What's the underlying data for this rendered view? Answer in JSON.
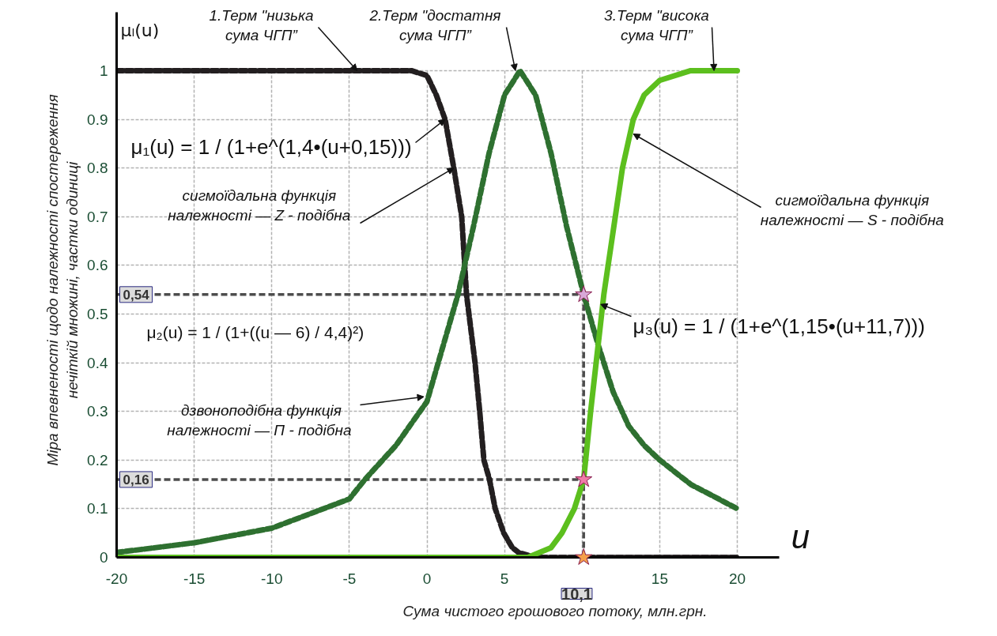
{
  "chart_data": {
    "type": "line",
    "xlabel": "Сума чистого грошового потоку, млн.грн.",
    "ylabel": "Міра впевненості щодо належності спостереження\nнечіткій множині, частки одиниці",
    "xlim": [
      -20,
      22.7
    ],
    "ylim": [
      0,
      1.12
    ],
    "xticks": [
      -20,
      -15,
      -10,
      -5,
      0,
      5,
      {
        "value": 10,
        "label": null
      },
      15,
      20
    ],
    "yticks": [
      0,
      0.1,
      0.2,
      0.3,
      0.4,
      0.5,
      0.6,
      0.7,
      0.8,
      0.9,
      1
    ],
    "grid": true,
    "series": [
      {
        "color": "#231f20",
        "line_style": "dashed",
        "x": [
          -20,
          -10,
          -1,
          0,
          0.6,
          1.17,
          1.73,
          2.24,
          2.55,
          3.1,
          3.4,
          3.67,
          4.03,
          4.4,
          4.95,
          5.5,
          5.9,
          7,
          20
        ],
        "values": [
          1,
          1,
          1,
          0.99,
          0.95,
          0.9,
          0.8,
          0.7,
          0.54,
          0.4,
          0.3,
          0.2,
          0.16,
          0.1,
          0.05,
          0.02,
          0.01,
          0,
          0
        ]
      },
      {
        "color": "#2e7030",
        "line_style": "dashed",
        "x": [
          -20,
          -15,
          -10,
          -5,
          -4,
          -2,
          0,
          1,
          2,
          3,
          4,
          5,
          6,
          7,
          8,
          9,
          10.1,
          11,
          12,
          13,
          14,
          15,
          17,
          20
        ],
        "values": [
          0.01,
          0.03,
          0.06,
          0.12,
          0.16,
          0.23,
          0.32,
          0.43,
          0.54,
          0.68,
          0.83,
          0.95,
          1,
          0.95,
          0.83,
          0.68,
          0.54,
          0.44,
          0.34,
          0.27,
          0.23,
          0.2,
          0.15,
          0.1
        ]
      },
      {
        "color": "#5cbf1e",
        "line_style": "solid",
        "x": [
          -20,
          0,
          6.5,
          8,
          8.7,
          9.5,
          10.1,
          10.55,
          11.4,
          12.6,
          13.3,
          14,
          15,
          17,
          20
        ],
        "values": [
          0,
          0,
          0,
          0.02,
          0.05,
          0.1,
          0.16,
          0.3,
          0.54,
          0.8,
          0.9,
          0.95,
          0.98,
          1,
          1
        ]
      },
      {
        "type": "scatter",
        "marker": "star",
        "x": [
          10.1,
          10.1,
          10.1
        ],
        "values": [
          0.54,
          0.16,
          0
        ],
        "colors": [
          "#d8a8d8",
          "#f07aa8",
          "#f5a04a"
        ]
      }
    ],
    "ref_lines": [
      {
        "axis": "y",
        "value": 0.54,
        "label": "0,54",
        "color": "#4d4d4d",
        "line_style": "dashed"
      },
      {
        "axis": "y",
        "value": 0.16,
        "label": "0,16",
        "color": "#4d4d4d",
        "line_style": "dashed"
      },
      {
        "axis": "x",
        "value": 10.1,
        "label": "10,1",
        "color": "#4d4d4d",
        "line_style": "dashed"
      }
    ],
    "annotations": [
      {
        "text": "1.Терм \"низька\nсума ЧГП”",
        "x": -4.5,
        "y": 1
      },
      {
        "text": "2.Терм \"достатня\nсума ЧГП”",
        "x": 5.7,
        "y": 1
      },
      {
        "text": "3.Терм \"висока\nсума ЧГП”",
        "x": 18.5,
        "y": 1
      },
      {
        "text": "μ₁(u) = 1 / (1+e^(1,4•(u+0,15)))",
        "x": 1.17,
        "y": 0.9
      },
      {
        "text": "сигмоїдальна  функція\nналежності —  Z - подібна",
        "x": 1.73,
        "y": 0.8
      },
      "μ₂(u) = 1 / (1+((u — 6) / 4,4)²)",
      {
        "text": "дзвоноподібна функція\nналежності —  Π - подібна",
        "x": -0.2,
        "y": 0.33
      },
      {
        "text": "сигмоїдальна  функція\nналежності —  S - подібна",
        "x": 13.3,
        "y": 0.87
      },
      {
        "text": "μ₃(u) = 1 / (1+e^(1,15•(u+11,7)))",
        "x": 11.2,
        "y": 0.52
      },
      "μₗ(u)",
      "u"
    ]
  }
}
